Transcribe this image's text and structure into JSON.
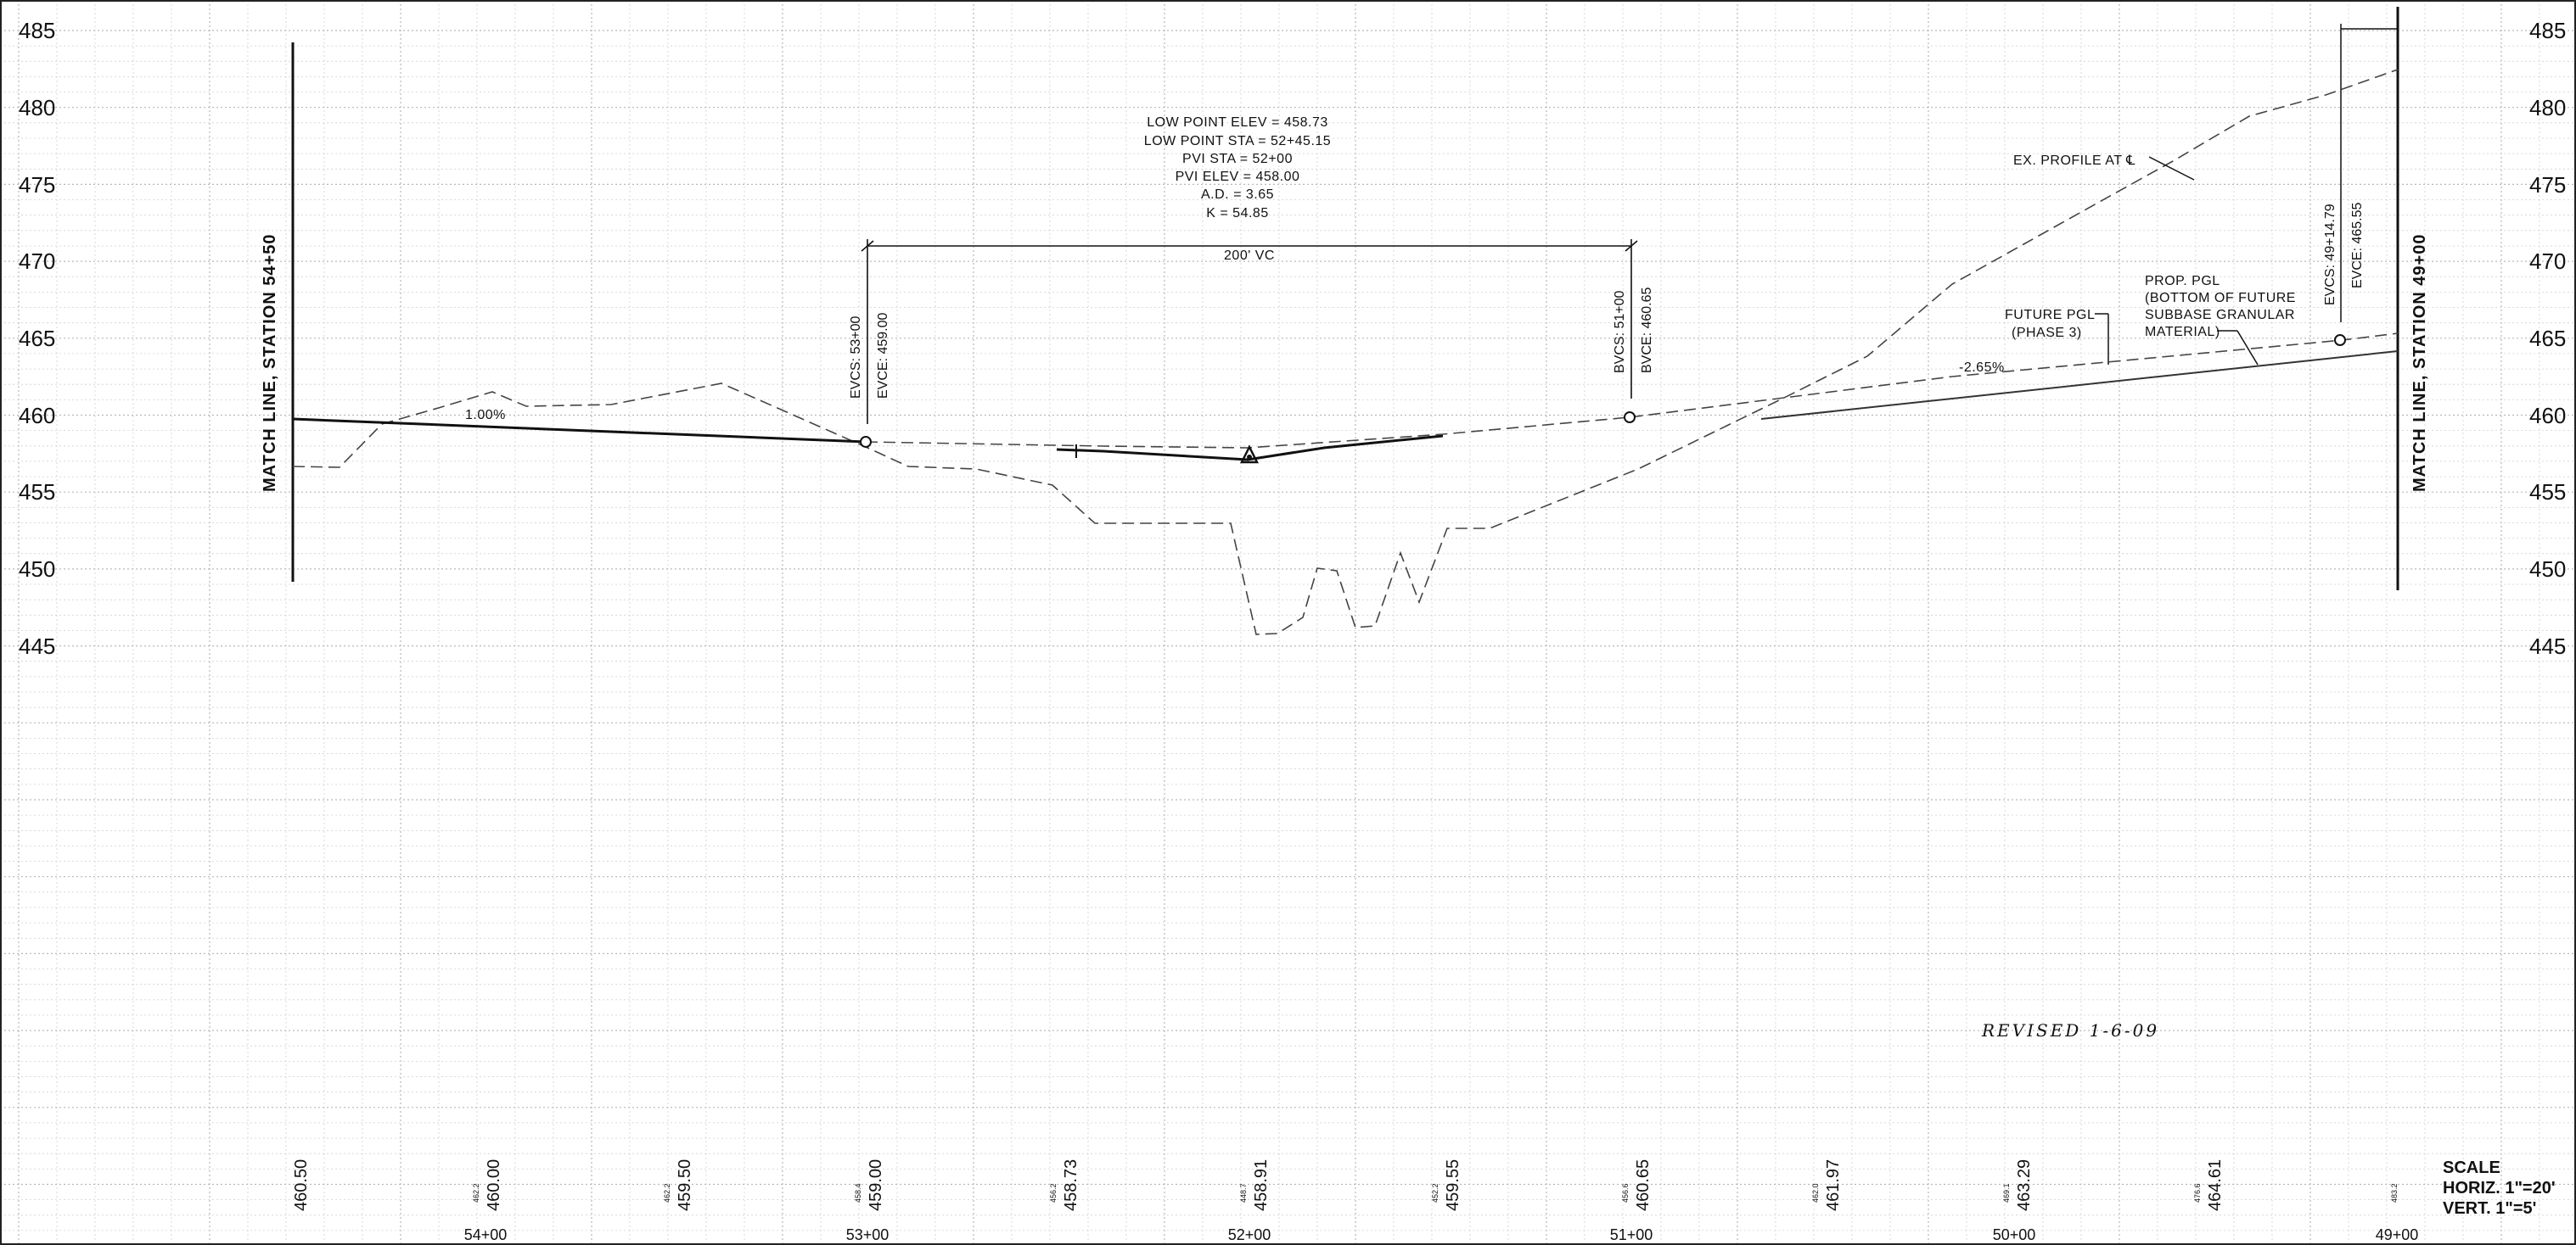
{
  "elevation_axis": {
    "labels": [
      "485",
      "480",
      "475",
      "470",
      "465",
      "460",
      "455",
      "450",
      "445"
    ]
  },
  "match_lines": {
    "left": "MATCH LINE, STATION 54+50",
    "right": "MATCH LINE, STATION 49+00"
  },
  "curve_data": {
    "lines": [
      "LOW POINT ELEV = 458.73",
      "LOW POINT STA = 52+45.15",
      "PVI STA = 52+00",
      "PVI ELEV = 458.00",
      "A.D. = 3.65",
      "K = 54.85"
    ],
    "vc_length": "200' VC"
  },
  "points": {
    "evcs_left": {
      "sta": "EVCS: 53+00",
      "elev": "EVCE: 459.00"
    },
    "bvcs": {
      "sta": "BVCS: 51+00",
      "elev": "BVCE: 460.65"
    },
    "evcs_right": {
      "sta": "EVCS: 49+14.79",
      "elev": "EVCE: 465.55"
    }
  },
  "grades": {
    "left": "1.00%",
    "right": "-2.65%"
  },
  "callouts": {
    "ex_profile": "EX. PROFILE AT ℄",
    "future_pgl": [
      "FUTURE PGL",
      "(PHASE 3)"
    ],
    "prop_pgl": [
      "PROP. PGL",
      "(BOTTOM OF FUTURE",
      "SUBBASE GRANULAR",
      "MATERIAL)"
    ]
  },
  "revision_note": "REVISED 1-6-09",
  "elevations_bottom": [
    {
      "existing": "",
      "proposed": "460.50"
    },
    {
      "existing": "462.2",
      "proposed": "460.00"
    },
    {
      "existing": "462.2",
      "proposed": "459.50"
    },
    {
      "existing": "458.4",
      "proposed": "459.00"
    },
    {
      "existing": "456.2",
      "proposed": "458.73"
    },
    {
      "existing": "448.7",
      "proposed": "458.91"
    },
    {
      "existing": "452.2",
      "proposed": "459.55"
    },
    {
      "existing": "456.6",
      "proposed": "460.65"
    },
    {
      "existing": "462.0",
      "proposed": "461.97"
    },
    {
      "existing": "469.1",
      "proposed": "463.29"
    },
    {
      "existing": "476.6",
      "proposed": "464.61"
    },
    {
      "existing": "483.2",
      "proposed": ""
    }
  ],
  "stations": [
    "54+00",
    "53+00",
    "52+00",
    "51+00",
    "50+00",
    "49+00"
  ],
  "scale": {
    "title": "SCALE",
    "horiz": "HORIZ. 1\"=20'",
    "vert": "VERT. 1\"=5'"
  },
  "colors": {
    "grid": "#d0d0d0",
    "grid_major": "#b8b8b8",
    "ink": "#111111",
    "dashed": "#444444"
  }
}
